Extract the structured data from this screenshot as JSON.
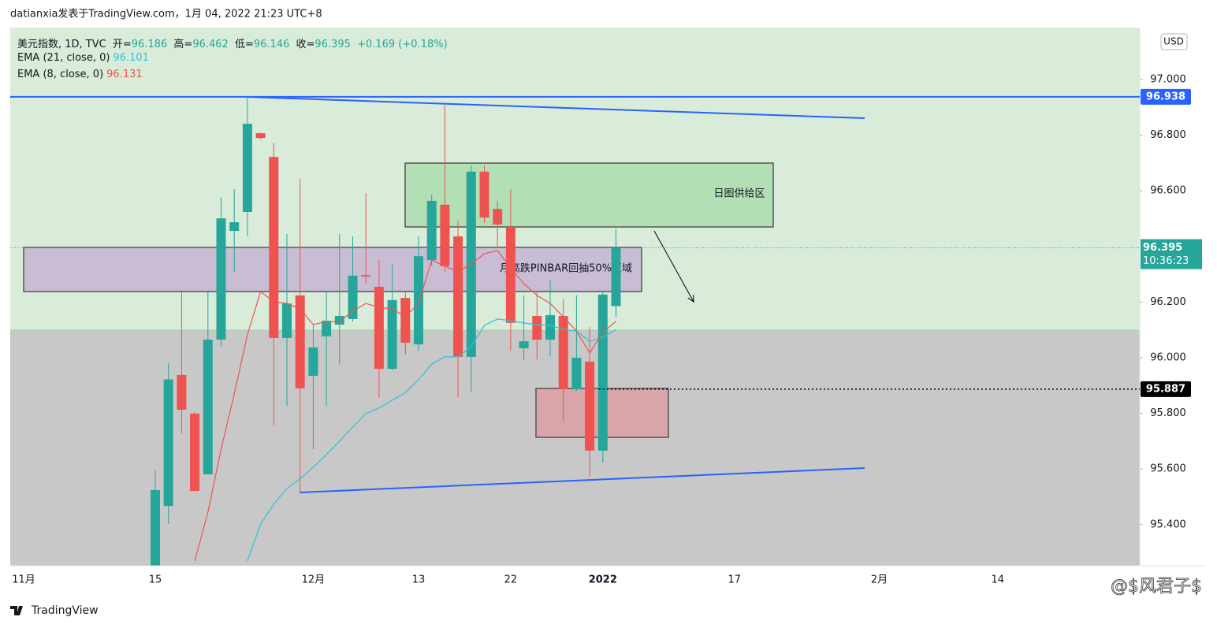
{
  "header": {
    "byline": "datianxia发表于TradingView.com，1月 04, 2022 21:23 UTC+8",
    "currency": "USD",
    "brand": "TradingView",
    "watermark": "@$风君子$"
  },
  "chart_data": {
    "type": "candlestick",
    "symbol": "美元指数, 1D, TVC",
    "ohlc_labels": [
      "开=",
      "高=",
      "低=",
      "收="
    ],
    "change_label": "+0.169 (+0.18%)",
    "countdown": "10:36:23",
    "up_color": "#26a69a",
    "down_color": "#ef5350",
    "categories": [
      "11月",
      null,
      null,
      null,
      null,
      null,
      null,
      null,
      null,
      null,
      "15",
      null,
      null,
      null,
      null,
      null,
      null,
      null,
      null,
      null,
      null,
      null,
      "12月",
      null,
      null,
      null,
      null,
      null,
      null,
      null,
      "13",
      null,
      null,
      null,
      null,
      null,
      null,
      "22",
      null,
      null,
      null,
      null,
      null,
      null,
      "2022",
      null,
      null,
      null,
      null,
      null,
      null,
      null,
      null,
      null,
      "17",
      null,
      null,
      null,
      null,
      null,
      null,
      null,
      null,
      null,
      null,
      "2月",
      null,
      null,
      null,
      null,
      null,
      null,
      null,
      null,
      "14",
      null,
      null,
      null,
      null,
      null,
      null,
      null,
      null,
      null
    ],
    "open": [
      null,
      null,
      null,
      null,
      null,
      null,
      null,
      null,
      null,
      null,
      95.22,
      95.467,
      95.938,
      95.799,
      95.581,
      96.065,
      96.456,
      96.524,
      96.807,
      96.722,
      96.071,
      96.224,
      95.935,
      96.077,
      96.119,
      96.139,
      96.297,
      96.255,
      95.96,
      96.215,
      96.048,
      96.351,
      96.55,
      96.436,
      96.003,
      96.669,
      96.535,
      96.47,
      96.034,
      96.15,
      96.065,
      96.15,
      95.887,
      95.986,
      95.666,
      96.186,
      null,
      null,
      null,
      null,
      null,
      null,
      null,
      null,
      null,
      null,
      null,
      null,
      null,
      null,
      null,
      null,
      null,
      null,
      null,
      null,
      null,
      null,
      null,
      null,
      null,
      null,
      null,
      null,
      null,
      null,
      null,
      null,
      null,
      null,
      null,
      null,
      null,
      null
    ],
    "high": [
      null,
      null,
      null,
      null,
      null,
      null,
      null,
      null,
      null,
      null,
      95.595,
      95.98,
      96.241,
      95.805,
      96.238,
      96.578,
      96.606,
      96.938,
      96.81,
      96.773,
      96.445,
      96.643,
      96.116,
      96.238,
      96.445,
      96.436,
      96.592,
      96.351,
      96.337,
      96.238,
      96.436,
      96.586,
      96.909,
      96.493,
      96.691,
      96.691,
      96.564,
      96.606,
      96.224,
      96.238,
      96.278,
      96.21,
      96.224,
      96.11,
      96.238,
      96.462,
      null,
      null,
      null,
      null,
      null,
      null,
      null,
      null,
      null,
      null,
      null,
      null,
      null,
      null,
      null,
      null,
      null,
      null,
      null,
      null,
      null,
      null,
      null,
      null,
      null,
      null,
      null,
      null,
      null,
      null,
      null,
      null,
      null,
      null,
      null,
      null,
      null,
      null
    ],
    "low": [
      null,
      null,
      null,
      null,
      null,
      null,
      null,
      null,
      null,
      null,
      95.15,
      95.402,
      95.728,
      95.52,
      95.58,
      96.04,
      96.309,
      96.436,
      96.785,
      95.756,
      95.827,
      95.516,
      95.671,
      95.827,
      95.975,
      96.13,
      96.266,
      95.856,
      95.955,
      96.011,
      96.025,
      96.331,
      96.309,
      95.856,
      95.878,
      96.484,
      96.394,
      96.025,
      95.992,
      95.994,
      96.006,
      95.771,
      95.881,
      95.572,
      95.623,
      96.146,
      null,
      null,
      null,
      null,
      null,
      null,
      null,
      null,
      null,
      null,
      null,
      null,
      null,
      null,
      null,
      null,
      null,
      null,
      null,
      null,
      null,
      null,
      null,
      null,
      null,
      null,
      null,
      null,
      null,
      null,
      null,
      null,
      null,
      null,
      null,
      null,
      null,
      null
    ],
    "close": [
      null,
      null,
      null,
      null,
      null,
      null,
      null,
      null,
      null,
      null,
      95.524,
      95.922,
      95.813,
      95.521,
      96.065,
      96.501,
      96.487,
      96.841,
      96.79,
      96.071,
      96.195,
      95.89,
      96.037,
      96.133,
      96.15,
      96.295,
      96.292,
      95.96,
      96.207,
      96.054,
      96.365,
      96.564,
      96.329,
      96.003,
      96.669,
      96.504,
      96.479,
      96.125,
      96.059,
      96.065,
      96.153,
      95.887,
      96.0,
      95.666,
      96.227,
      96.395,
      null,
      null,
      null,
      null,
      null,
      null,
      null,
      null,
      null,
      null,
      null,
      null,
      null,
      null,
      null,
      null,
      null,
      null,
      null,
      null,
      null,
      null,
      null,
      null,
      null,
      null,
      null,
      null,
      null,
      null,
      null,
      null,
      null,
      null,
      null,
      null,
      null,
      null
    ],
    "series": [
      {
        "name": "EMA (21, close, 0)",
        "color": "#26c6da",
        "values": [
          null,
          null,
          null,
          null,
          null,
          null,
          null,
          null,
          null,
          null,
          null,
          null,
          null,
          null,
          null,
          null,
          null,
          95.269,
          95.402,
          95.473,
          95.53,
          95.564,
          95.606,
          95.652,
          95.7,
          95.751,
          95.799,
          95.819,
          95.847,
          95.875,
          95.921,
          95.977,
          96.003,
          96.003,
          96.04,
          96.116,
          96.139,
          96.133,
          96.125,
          96.119,
          96.116,
          96.102,
          96.096,
          96.059,
          96.074,
          96.101,
          null,
          null,
          null,
          null,
          null,
          null,
          null,
          null,
          null,
          null,
          null,
          null,
          null,
          null,
          null,
          null,
          null,
          null,
          null,
          null,
          null,
          null,
          null,
          null,
          null,
          null,
          null,
          null,
          null,
          null,
          null,
          null,
          null,
          null,
          null,
          null,
          null,
          null
        ]
      },
      {
        "name": "EMA (8, close, 0)",
        "color": "#ef5350",
        "values": [
          null,
          null,
          null,
          null,
          null,
          null,
          null,
          null,
          null,
          null,
          null,
          null,
          null,
          95.269,
          95.445,
          95.671,
          95.87,
          96.082,
          96.238,
          96.201,
          96.195,
          96.176,
          96.119,
          96.13,
          96.13,
          96.167,
          96.195,
          96.181,
          96.176,
          96.147,
          96.195,
          96.351,
          96.329,
          96.309,
          96.337,
          96.374,
          96.385,
          96.323,
          96.266,
          96.224,
          96.195,
          96.147,
          96.096,
          96.017,
          96.091,
          96.131,
          null,
          null,
          null,
          null,
          null,
          null,
          null,
          null,
          null,
          null,
          null,
          null,
          null,
          null,
          null,
          null,
          null,
          null,
          null,
          null,
          null,
          null,
          null,
          null,
          null,
          null,
          null,
          null,
          null,
          null,
          null,
          null,
          null,
          null,
          null,
          null,
          null,
          null
        ]
      }
    ],
    "price_lines": [
      {
        "value": 96.938,
        "color": "#2962ff",
        "style": "solid"
      },
      {
        "value": 95.887,
        "color": "#000000",
        "style": "dotted"
      }
    ],
    "annotations": [
      "日图供给区",
      "月高跌PINBAR回抽50%区域"
    ],
    "ylim": [
      95.252,
      97.187
    ],
    "yticks": [
      {
        "value": 95.4,
        "label": "95.400"
      },
      {
        "value": 95.6,
        "label": "95.600"
      },
      {
        "value": 95.8,
        "label": "95.800"
      },
      {
        "value": 96,
        "label": "96.000"
      },
      {
        "value": 96.2,
        "label": "96.200"
      },
      {
        "value": 96.6,
        "label": "96.600"
      },
      {
        "value": 96.8,
        "label": "96.800"
      },
      {
        "value": 97,
        "label": "97.000"
      }
    ]
  }
}
